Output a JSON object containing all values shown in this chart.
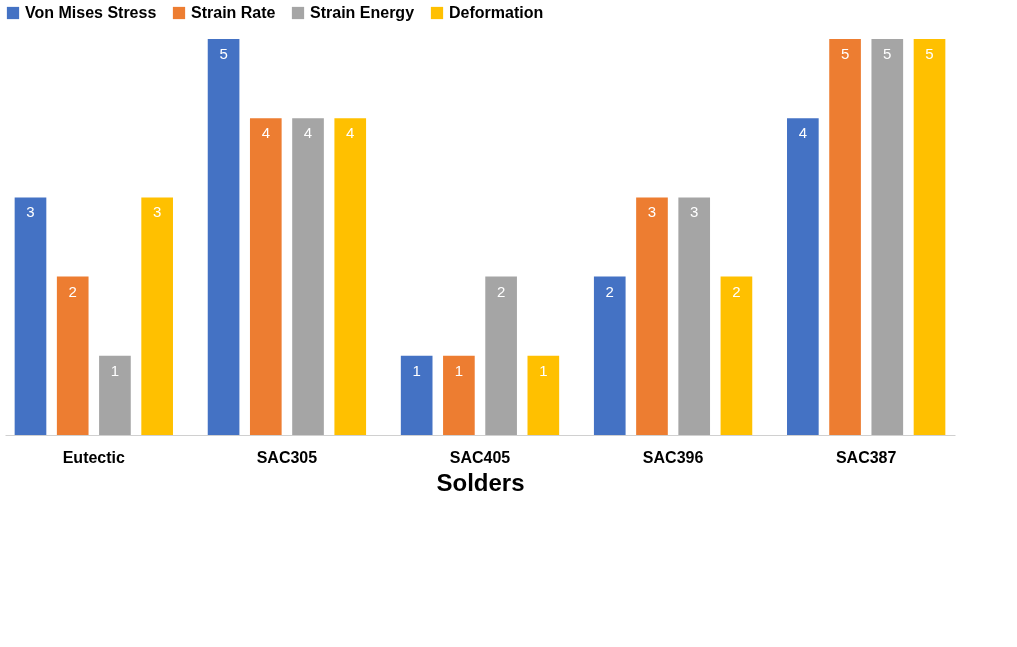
{
  "chart_data": {
    "type": "bar",
    "xlabel": "Solders",
    "categories": [
      "Eutectic",
      "SAC305",
      "SAC405",
      "SAC396",
      "SAC387"
    ],
    "series": [
      {
        "name": "Von Mises Stress",
        "color": "#4472c4",
        "values": [
          3,
          5,
          1,
          2,
          4
        ]
      },
      {
        "name": "Strain Rate",
        "color": "#ed7d31",
        "values": [
          2,
          4,
          1,
          3,
          5
        ]
      },
      {
        "name": "Strain Energy",
        "color": "#a5a5a5",
        "values": [
          1,
          4,
          2,
          3,
          5
        ]
      },
      {
        "name": "Deformation",
        "color": "#ffc000",
        "values": [
          3,
          4,
          1,
          2,
          5
        ]
      }
    ],
    "ylim": [
      0,
      5
    ],
    "tick_labels": "x",
    "data_labels": true,
    "legend": "top"
  }
}
